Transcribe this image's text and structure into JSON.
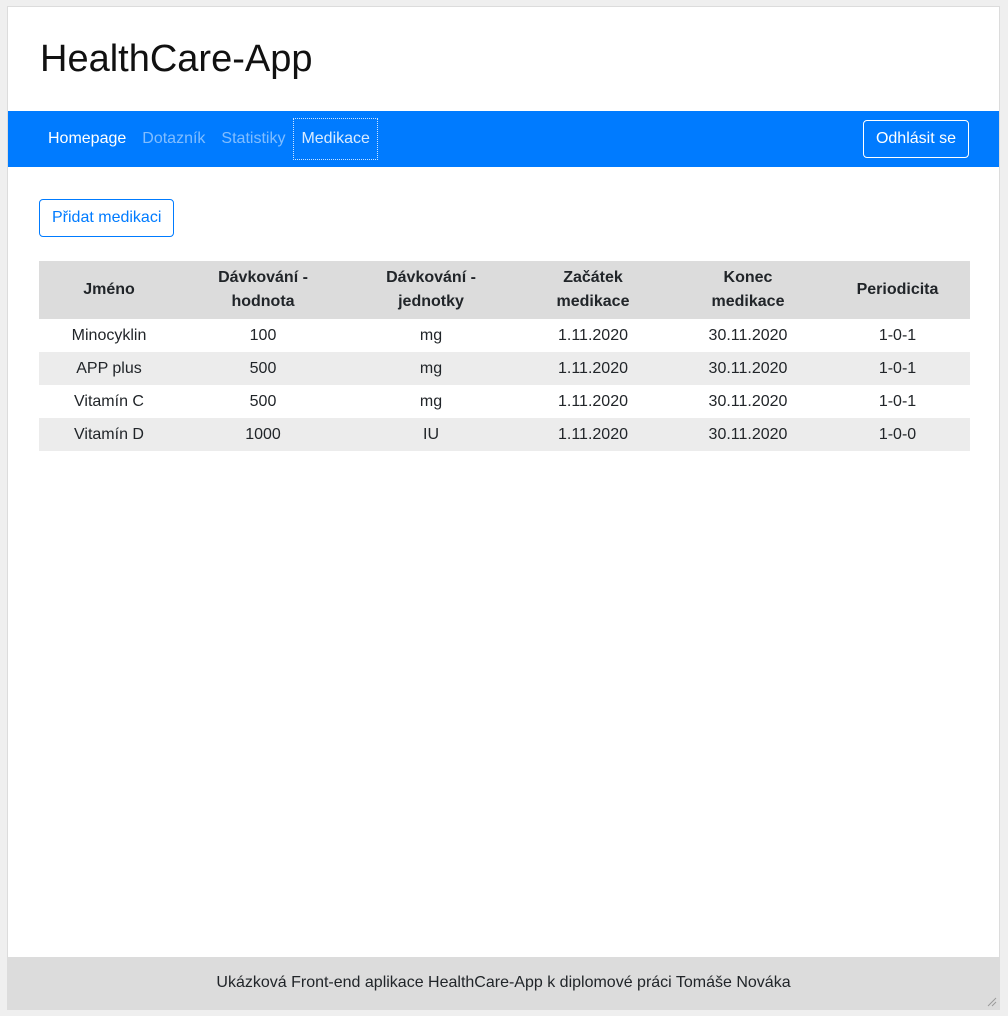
{
  "app": {
    "title": "HealthCare-App"
  },
  "nav": {
    "items": [
      {
        "label": "Homepage",
        "state": "active"
      },
      {
        "label": "Dotazník",
        "state": "inactive"
      },
      {
        "label": "Statistiky",
        "state": "inactive"
      },
      {
        "label": "Medikace",
        "state": "focused"
      }
    ],
    "logout_label": "Odhlásit se"
  },
  "main": {
    "add_button_label": "Přidat medikaci",
    "table": {
      "headers": [
        [
          "Jméno"
        ],
        [
          "Dávkování -",
          "hodnota"
        ],
        [
          "Dávkování -",
          "jednotky"
        ],
        [
          "Začátek",
          "medikace"
        ],
        [
          "Konec",
          "medikace"
        ],
        [
          "Periodicita"
        ]
      ],
      "rows": [
        [
          "Minocyklin",
          "100",
          "mg",
          "1.11.2020",
          "30.11.2020",
          "1-0-1"
        ],
        [
          "APP plus",
          "500",
          "mg",
          "1.11.2020",
          "30.11.2020",
          "1-0-1"
        ],
        [
          "Vitamín C",
          "500",
          "mg",
          "1.11.2020",
          "30.11.2020",
          "1-0-1"
        ],
        [
          "Vitamín D",
          "1000",
          "IU",
          "1.11.2020",
          "30.11.2020",
          "1-0-0"
        ]
      ]
    }
  },
  "footer": {
    "text": "Ukázková Front-end aplikace HealthCare-App k diplomové práci Tomáše Nováka"
  },
  "colors": {
    "navbar": "#007bff",
    "header_row": "#dcdcdc",
    "striped_row": "#ececec",
    "footer": "#dcdcdc"
  },
  "icons": {
    "resize": "resize-grip-icon"
  }
}
